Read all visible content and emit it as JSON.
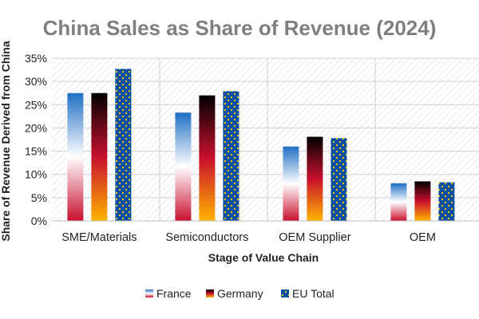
{
  "chart_data": {
    "type": "bar",
    "title": "China Sales as Share of Revenue (2024)",
    "xlabel": "Stage of Value Chain",
    "ylabel": "Share of Revenue Derived from China",
    "categories": [
      "SME/Materials",
      "Semiconductors",
      "OEM Supplier",
      "OEM"
    ],
    "series": [
      {
        "name": "France",
        "values": [
          27.5,
          23.3,
          16.0,
          8.1
        ]
      },
      {
        "name": "Germany",
        "values": [
          27.5,
          27.0,
          18.1,
          8.5
        ]
      },
      {
        "name": "EU Total",
        "values": [
          32.7,
          27.9,
          17.8,
          8.3
        ]
      }
    ],
    "ylim": [
      0,
      35
    ],
    "yticks": [
      0,
      5,
      10,
      15,
      20,
      25,
      30,
      35
    ],
    "ytick_labels": [
      "0%",
      "5%",
      "10%",
      "15%",
      "20%",
      "25%",
      "30%",
      "35%"
    ],
    "grid": true,
    "legend_position": "bottom",
    "colors": {
      "france": [
        "#1f6fc4",
        "#ffffff",
        "#c8102e"
      ],
      "germany": [
        "#000000",
        "#c8102e",
        "#ffb400"
      ],
      "eu": [
        "#0b4ea2",
        "#ffd200"
      ],
      "title": "#7f7f7f",
      "grid": "#d0d0d0"
    }
  }
}
